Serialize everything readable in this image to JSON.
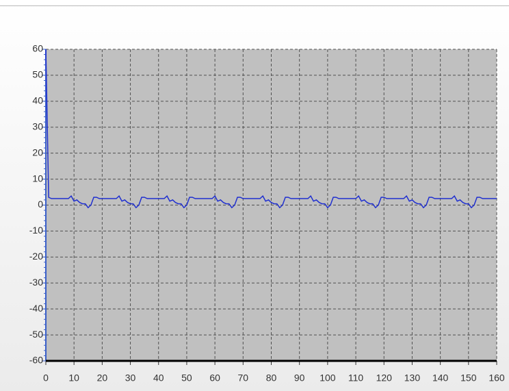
{
  "chart_data": {
    "type": "line",
    "x": [
      0,
      1,
      2,
      3,
      4,
      5,
      6,
      7,
      8,
      9,
      10,
      11,
      12,
      13,
      14,
      15,
      16,
      17,
      18,
      19,
      20,
      21,
      22,
      23,
      24,
      25,
      26,
      27,
      28,
      29,
      30,
      31,
      32,
      33,
      34,
      35,
      36,
      37,
      38,
      39,
      40,
      41,
      42,
      43,
      44,
      45,
      46,
      47,
      48,
      49,
      50,
      51,
      52,
      53,
      54,
      55,
      56,
      57,
      58,
      59,
      60,
      61,
      62,
      63,
      64,
      65,
      66,
      67,
      68,
      69,
      70,
      71,
      72,
      73,
      74,
      75,
      76,
      77,
      78,
      79,
      80,
      81,
      82,
      83,
      84,
      85,
      86,
      87,
      88,
      89,
      90,
      91,
      92,
      93,
      94,
      95,
      96,
      97,
      98,
      99,
      100,
      101,
      102,
      103,
      104,
      105,
      106,
      107,
      108,
      109,
      110,
      111,
      112,
      113,
      114,
      115,
      116,
      117,
      118,
      119,
      120,
      121,
      122,
      123,
      124,
      125,
      126,
      127,
      128,
      129,
      130,
      131,
      132,
      133,
      134,
      135,
      136,
      137,
      138,
      139,
      140,
      141,
      142,
      143,
      144,
      145,
      146,
      147,
      148,
      149,
      150,
      151,
      152,
      153,
      154,
      155,
      156,
      157,
      158,
      159,
      160
    ],
    "series": [
      {
        "color": "#1f2fd0",
        "values": [
          60,
          3,
          2.5,
          2.5,
          2.5,
          2.5,
          2.5,
          2.5,
          2.5,
          3.5,
          1.5,
          2,
          1,
          0.5,
          0.5,
          -1,
          0,
          3,
          3,
          2.5,
          2.5,
          2.5,
          2.5,
          2.5,
          2.5,
          2.5,
          3.5,
          1.5,
          2,
          1,
          0.5,
          0.5,
          -1,
          0,
          3,
          3,
          2.5,
          2.5,
          2.5,
          2.5,
          2.5,
          2.5,
          2.5,
          3.5,
          1.5,
          2,
          1,
          0.5,
          0.5,
          -1,
          0,
          3,
          3,
          2.5,
          2.5,
          2.5,
          2.5,
          2.5,
          2.5,
          2.5,
          3.5,
          1.5,
          2,
          1,
          0.5,
          0.5,
          -1,
          0,
          3,
          3,
          2.5,
          2.5,
          2.5,
          2.5,
          2.5,
          2.5,
          2.5,
          3.5,
          1.5,
          2,
          1,
          0.5,
          0.5,
          -1,
          0,
          3,
          3,
          2.5,
          2.5,
          2.5,
          2.5,
          2.5,
          2.5,
          2.5,
          3.5,
          1.5,
          2,
          1,
          0.5,
          0.5,
          -1,
          0,
          3,
          3,
          2.5,
          2.5,
          2.5,
          2.5,
          2.5,
          2.5,
          2.5,
          3.5,
          1.5,
          2,
          1,
          0.5,
          0.5,
          -1,
          0,
          3,
          3,
          2.5,
          2.5,
          2.5,
          2.5,
          2.5,
          2.5,
          2.5,
          3.5,
          1.5,
          2,
          1,
          0.5,
          0.5,
          -1,
          0,
          3,
          3,
          2.5,
          2.5,
          2.5,
          2.5,
          2.5,
          2.5,
          2.5,
          3.5,
          1.5,
          2,
          1,
          0.5,
          0.5,
          -1,
          0,
          3,
          3,
          2.5,
          2.5,
          2.5,
          2.5,
          2.5,
          2.5
        ]
      }
    ],
    "xlim": [
      0,
      160
    ],
    "xticks": [
      0,
      10,
      20,
      30,
      40,
      50,
      60,
      70,
      80,
      90,
      100,
      110,
      120,
      130,
      140,
      150,
      160
    ],
    "ylim": [
      -60,
      60
    ],
    "yticks": [
      -60,
      -50,
      -40,
      -30,
      -20,
      -10,
      0,
      10,
      20,
      30,
      40,
      50,
      60
    ],
    "grid": true
  }
}
